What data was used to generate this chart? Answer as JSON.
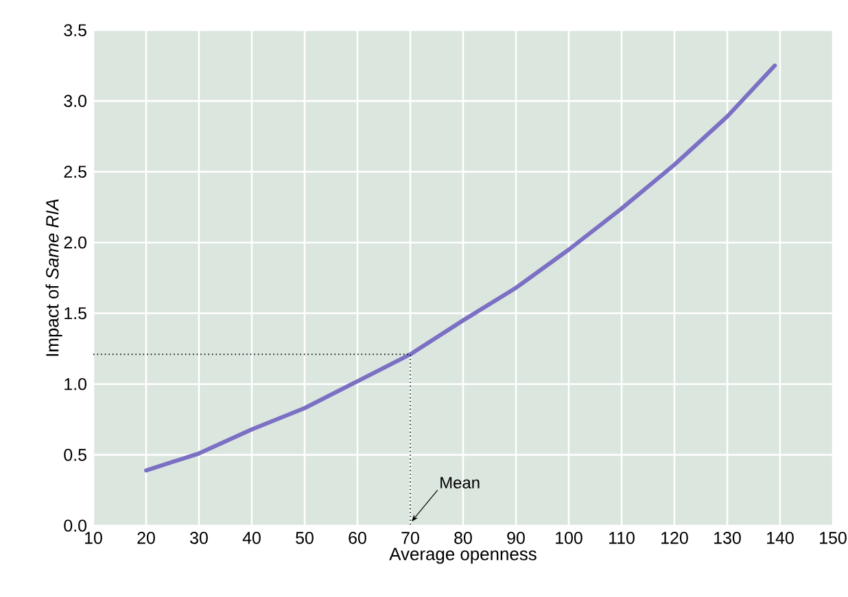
{
  "chart_data": {
    "type": "line",
    "xlabel": "Average openness",
    "ylabel": "Impact of *Same RIA*",
    "x": [
      20,
      30,
      40,
      50,
      60,
      70,
      80,
      90,
      100,
      110,
      120,
      130,
      139
    ],
    "series": [
      {
        "color": "#7b70c4",
        "values": [
          0.39,
          0.51,
          0.68,
          0.83,
          1.02,
          1.21,
          1.45,
          1.68,
          1.95,
          2.24,
          2.55,
          2.89,
          3.25
        ]
      }
    ],
    "xlim": [
      10,
      150
    ],
    "ylim": [
      0,
      3.5
    ],
    "xticks": [
      10,
      20,
      30,
      40,
      50,
      60,
      70,
      80,
      90,
      100,
      110,
      120,
      130,
      140,
      150
    ],
    "yticks": [
      {
        "value": 0,
        "label": "0.0"
      },
      0.5,
      {
        "value": 1,
        "label": "1.0"
      },
      1.5,
      {
        "value": 2,
        "label": "2.0"
      },
      2.5,
      {
        "value": 3,
        "label": "3.0"
      },
      3.5
    ],
    "grid": true,
    "marker": "none",
    "line_style": "solid",
    "ref_lines": [
      {
        "axis": "x",
        "value": 70,
        "label": "Mean",
        "line_style": "dotted"
      }
    ]
  }
}
